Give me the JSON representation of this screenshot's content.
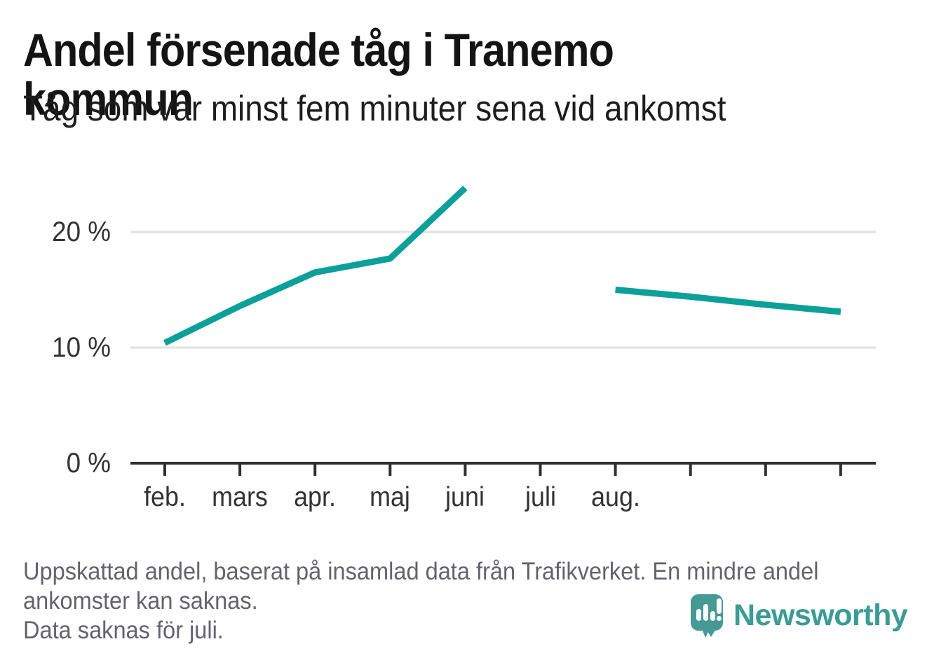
{
  "chart_data": {
    "type": "line",
    "title": "Andel försenade tåg i Tranemo kommun",
    "subtitle": "Tåg som var minst fem minuter sena vid ankomst",
    "x_tick_labels": [
      "feb.",
      "mars",
      "apr.",
      "maj",
      "juni",
      "juli",
      "aug.",
      "",
      "",
      ""
    ],
    "yticks": [
      0,
      10,
      20
    ],
    "ytick_suffix": " %",
    "ylim": [
      0,
      25
    ],
    "grid": true,
    "legend_position": "none",
    "values": [
      10.4,
      13.6,
      16.5,
      17.7,
      23.8,
      null,
      15.0,
      14.4,
      13.7,
      13.1
    ]
  },
  "colors": {
    "line": "#0ba09a",
    "grid": "#e2e2e2",
    "axis": "#2f2f2f",
    "tick_label": "#333333",
    "title_text": "#141414",
    "footer_text": "#63636b",
    "logo_bubble": "#459a95",
    "logo_wordmark": "#3a9c94"
  },
  "footer": {
    "lines": [
      "Uppskattad andel, baserat på insamlad data från Trafikverket. En mindre andel",
      "ankomster kan saknas.",
      "Data saknas för juli."
    ]
  },
  "logo": {
    "wordmark": "Newsworthy",
    "icon": "speech-bubble-bar-chart-icon"
  }
}
